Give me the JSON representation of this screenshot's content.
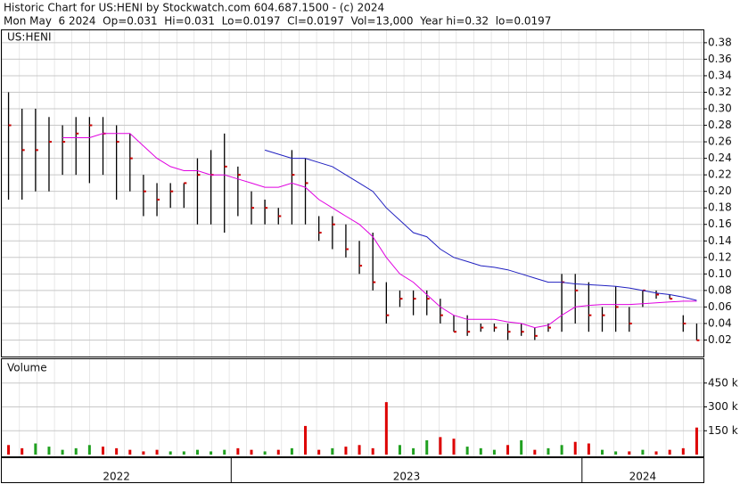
{
  "chart_data": {
    "type": "ohlc",
    "title": "Historic Chart for US:HENI by Stockwatch.com 604.687.1500 - (c) 2024",
    "subtitle": "Mon May  6 2024  Op=0.031  Hi=0.031  Lo=0.0197  Cl=0.0197  Vol=13,000  Year hi=0.32  lo=0.0197",
    "symbol_label": "US:HENI",
    "bar_color": "#000000",
    "close_color": "#cc0000",
    "grid": true,
    "categories": [
      null,
      null,
      null,
      null,
      null,
      null,
      null,
      null,
      null,
      null,
      null,
      null,
      null,
      null,
      null,
      null,
      null,
      null,
      null,
      null,
      null,
      null,
      null,
      null,
      null,
      null,
      null,
      null,
      null,
      null,
      null,
      null,
      null,
      null,
      null,
      null,
      null,
      null,
      null,
      null,
      null,
      null,
      null,
      null,
      null,
      null,
      null,
      null,
      null,
      null,
      null,
      null
    ],
    "x_groups": [
      {
        "label": "2022",
        "from": 0,
        "to": 16
      },
      {
        "label": "2023",
        "from": 17,
        "to": 42
      },
      {
        "label": "2024",
        "from": 43,
        "to": 51
      }
    ],
    "high": [
      0.32,
      0.3,
      0.3,
      0.29,
      0.28,
      0.29,
      0.29,
      0.29,
      0.28,
      0.27,
      0.22,
      0.21,
      0.21,
      0.21,
      0.24,
      0.25,
      0.27,
      0.23,
      0.2,
      0.19,
      0.18,
      0.25,
      0.24,
      0.17,
      0.17,
      0.16,
      0.14,
      0.15,
      0.09,
      0.08,
      0.08,
      0.08,
      0.07,
      0.05,
      0.05,
      0.04,
      0.04,
      0.04,
      0.04,
      0.035,
      0.04,
      0.1,
      0.1,
      0.09,
      0.06,
      0.085,
      0.06,
      0.08,
      0.08,
      0.075,
      0.05,
      0.04
    ],
    "low": [
      0.19,
      0.19,
      0.2,
      0.2,
      0.22,
      0.22,
      0.21,
      0.22,
      0.19,
      0.2,
      0.17,
      0.17,
      0.18,
      0.18,
      0.16,
      0.16,
      0.15,
      0.17,
      0.16,
      0.16,
      0.16,
      0.16,
      0.16,
      0.14,
      0.13,
      0.12,
      0.1,
      0.08,
      0.04,
      0.06,
      0.05,
      0.05,
      0.04,
      0.03,
      0.025,
      0.03,
      0.03,
      0.02,
      0.025,
      0.02,
      0.03,
      0.03,
      0.04,
      0.03,
      0.03,
      0.03,
      0.03,
      0.06,
      0.07,
      0.07,
      0.03,
      0.0197
    ],
    "close": [
      0.28,
      0.25,
      0.25,
      0.26,
      0.26,
      0.27,
      0.28,
      0.27,
      0.26,
      0.24,
      0.2,
      0.19,
      0.2,
      0.21,
      0.22,
      0.22,
      0.23,
      0.22,
      0.18,
      0.18,
      0.17,
      0.22,
      0.21,
      0.15,
      0.16,
      0.13,
      0.11,
      0.09,
      0.05,
      0.07,
      0.07,
      0.07,
      0.05,
      0.03,
      0.03,
      0.035,
      0.035,
      0.03,
      0.03,
      0.025,
      0.035,
      0.09,
      0.08,
      0.05,
      0.05,
      0.06,
      0.04,
      0.08,
      0.075,
      0.07,
      0.04,
      0.0197
    ],
    "ma_lines": [
      {
        "color": "#e000e0",
        "values": [
          null,
          null,
          null,
          null,
          0.265,
          0.265,
          0.265,
          0.27,
          0.27,
          0.27,
          0.255,
          0.24,
          0.23,
          0.225,
          0.225,
          0.22,
          0.22,
          0.215,
          0.21,
          0.205,
          0.205,
          0.21,
          0.205,
          0.19,
          0.18,
          0.17,
          0.16,
          0.145,
          0.12,
          0.1,
          0.09,
          0.075,
          0.06,
          0.05,
          0.045,
          0.045,
          0.045,
          0.042,
          0.04,
          0.035,
          0.038,
          0.05,
          0.06,
          0.062,
          0.063,
          0.063,
          0.063,
          0.064,
          0.065,
          0.066,
          0.067,
          0.067
        ]
      },
      {
        "color": "#2020c0",
        "values": [
          null,
          null,
          null,
          null,
          null,
          null,
          null,
          null,
          null,
          null,
          null,
          null,
          null,
          null,
          null,
          null,
          null,
          null,
          null,
          0.25,
          0.245,
          0.24,
          0.24,
          0.235,
          0.23,
          0.22,
          0.21,
          0.2,
          0.18,
          0.165,
          0.15,
          0.145,
          0.13,
          0.12,
          0.115,
          0.11,
          0.108,
          0.105,
          0.1,
          0.095,
          0.09,
          0.09,
          0.088,
          0.087,
          0.086,
          0.085,
          0.083,
          0.08,
          0.077,
          0.075,
          0.072,
          0.068
        ]
      }
    ],
    "ylim": [
      0,
      0.395
    ],
    "yticks": [
      0.02,
      0.04,
      0.06,
      0.08,
      {
        "value": 0.1,
        "label": "0.10"
      },
      0.12,
      0.14,
      0.16,
      0.18,
      {
        "value": 0.2,
        "label": "0.20"
      },
      0.22,
      0.24,
      0.26,
      0.28,
      {
        "value": 0.3,
        "label": "0.30"
      },
      0.32,
      0.34,
      0.36,
      0.38
    ],
    "volume": {
      "label": "Volume",
      "up_color": "#20a020",
      "down_color": "#dd0000",
      "values": [
        60000,
        40000,
        70000,
        50000,
        30000,
        40000,
        60000,
        50000,
        40000,
        30000,
        20000,
        30000,
        20000,
        20000,
        30000,
        20000,
        30000,
        40000,
        30000,
        20000,
        30000,
        40000,
        180000,
        30000,
        40000,
        50000,
        60000,
        40000,
        330000,
        60000,
        40000,
        90000,
        110000,
        100000,
        50000,
        40000,
        30000,
        60000,
        90000,
        30000,
        40000,
        60000,
        80000,
        70000,
        30000,
        20000,
        20000,
        30000,
        20000,
        30000,
        40000,
        170000
      ],
      "ylim": [
        0,
        600000
      ],
      "yticks": [
        {
          "value": 150000,
          "label": "150 k"
        },
        {
          "value": 300000,
          "label": "300 k"
        },
        {
          "value": 450000,
          "label": "450 k"
        }
      ]
    }
  }
}
